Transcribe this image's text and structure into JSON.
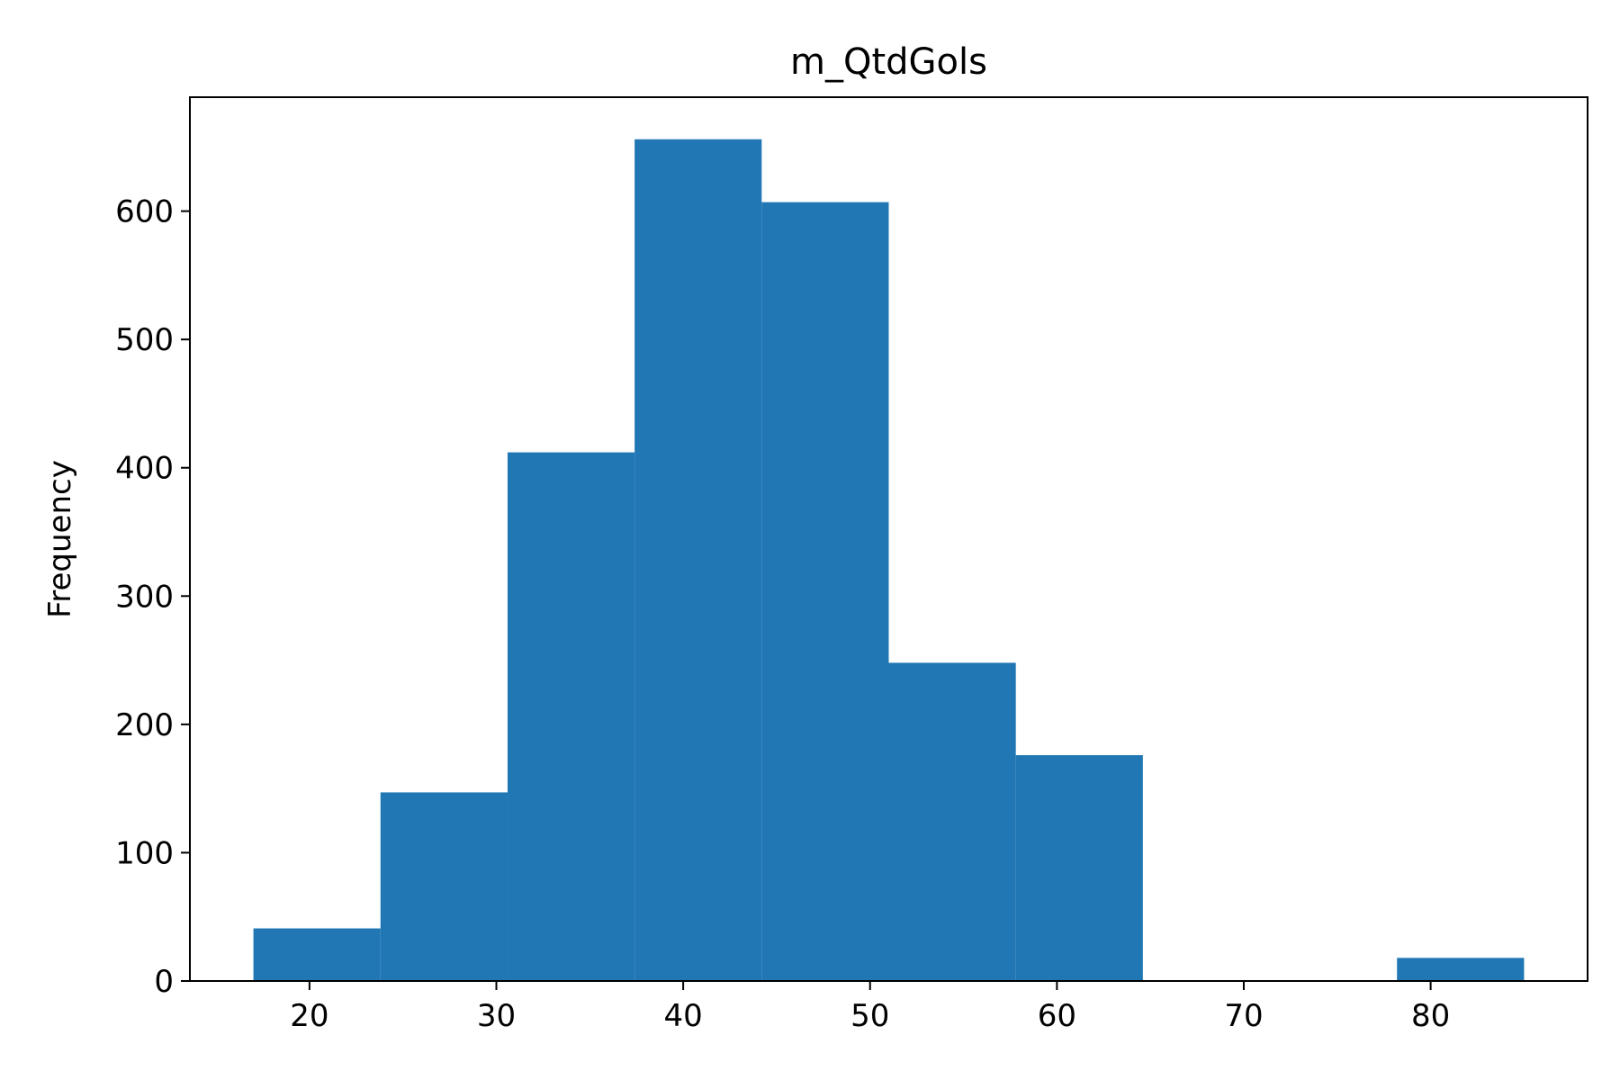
{
  "chart_data": {
    "type": "bar",
    "title": "m_QtdGols",
    "xlabel": "",
    "ylabel": "Frequency",
    "bins": [
      {
        "start": 17.0,
        "end": 23.8,
        "count": 41
      },
      {
        "start": 23.8,
        "end": 30.6,
        "count": 147
      },
      {
        "start": 30.6,
        "end": 37.4,
        "count": 412
      },
      {
        "start": 37.4,
        "end": 44.2,
        "count": 656
      },
      {
        "start": 44.2,
        "end": 51.0,
        "count": 607
      },
      {
        "start": 51.0,
        "end": 57.8,
        "count": 248
      },
      {
        "start": 57.8,
        "end": 64.6,
        "count": 176
      },
      {
        "start": 64.6,
        "end": 71.4,
        "count": 0
      },
      {
        "start": 71.4,
        "end": 78.2,
        "count": 0
      },
      {
        "start": 78.2,
        "end": 85.0,
        "count": 18
      }
    ],
    "xlim": [
      13.6,
      88.4
    ],
    "ylim": [
      0,
      688.8
    ],
    "xticks": [
      20,
      30,
      40,
      50,
      60,
      70,
      80
    ],
    "yticks": [
      0,
      100,
      200,
      300,
      400,
      500,
      600
    ],
    "bar_color": "#2077b4",
    "grid": false,
    "legend": "none"
  }
}
